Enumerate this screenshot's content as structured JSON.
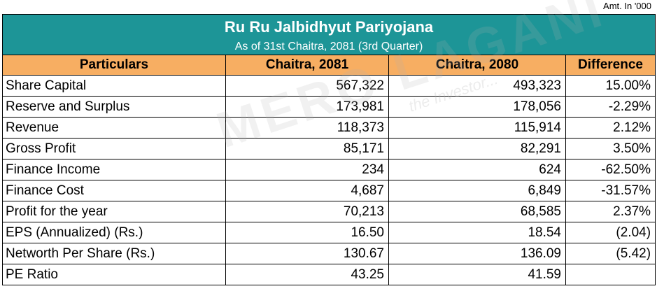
{
  "amount_note": "Amt. In '000",
  "title": "Ru Ru Jalbidhyut Pariyojana",
  "subtitle": "As of 31st Chaitra, 2081 (3rd Quarter)",
  "headers": [
    "Particulars",
    "Chaitra, 2081",
    "Chaitra, 2080",
    "Difference"
  ],
  "rows": [
    {
      "particular": "Share Capital",
      "current": "567,322",
      "previous": "493,323",
      "difference": "15.00%"
    },
    {
      "particular": "Reserve and Surplus",
      "current": "173,981",
      "previous": "178,056",
      "difference": "-2.29%"
    },
    {
      "particular": "Revenue",
      "current": "118,373",
      "previous": "115,914",
      "difference": "2.12%"
    },
    {
      "particular": "Gross Profit",
      "current": "85,171",
      "previous": "82,291",
      "difference": "3.50%"
    },
    {
      "particular": "Finance Income",
      "current": "234",
      "previous": "624",
      "difference": "-62.50%"
    },
    {
      "particular": "Finance Cost",
      "current": "4,687",
      "previous": "6,849",
      "difference": "-31.57%"
    },
    {
      "particular": "Profit for the year",
      "current": "70,213",
      "previous": "68,585",
      "difference": "2.37%"
    },
    {
      "particular": "EPS (Annualized) (Rs.)",
      "current": "16.50",
      "previous": "18.54",
      "difference": "(2.04)"
    },
    {
      "particular": "Networth Per Share (Rs.)",
      "current": "130.67",
      "previous": "136.09",
      "difference": "(5.42)"
    },
    {
      "particular": "PE Ratio",
      "current": "43.25",
      "previous": "41.59",
      "difference": ""
    }
  ],
  "watermark": {
    "main": "MERO LAGANI",
    "sub": "the Investor..."
  },
  "colors": {
    "title_bg": "#1d9597",
    "header_bg": "#f7ae62"
  }
}
